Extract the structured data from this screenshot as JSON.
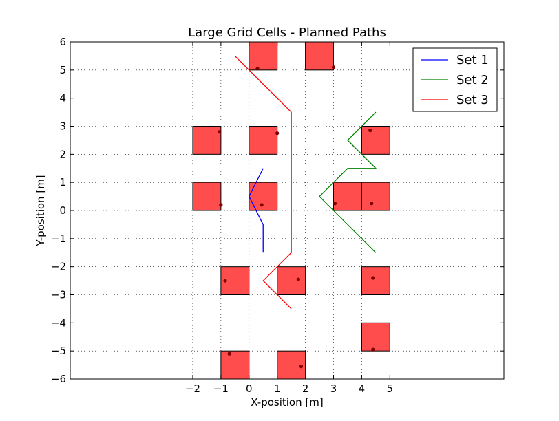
{
  "chart_data": {
    "type": "line",
    "title": "Large Grid Cells - Planned Paths",
    "xlabel": "X-position [m]",
    "ylabel": "Y-position [m]",
    "xlim": [
      -6.35,
      9.05
    ],
    "ylim": [
      -6,
      6
    ],
    "xticks": [
      -2,
      -1,
      0,
      1,
      2,
      3,
      4,
      5
    ],
    "yticks": [
      -6,
      -5,
      -4,
      -3,
      -2,
      -1,
      0,
      1,
      2,
      3,
      4,
      5,
      6
    ],
    "grid": true,
    "legend_position": "top-right",
    "series": [
      {
        "name": "Set 1",
        "color": "#0000ff",
        "x": [
          0.5,
          0.0,
          0.5,
          0.5
        ],
        "y": [
          1.5,
          0.5,
          -0.5,
          -1.5
        ]
      },
      {
        "name": "Set 2",
        "color": "#008000",
        "x": [
          4.5,
          3.5,
          4.5,
          3.5,
          2.5,
          3.5,
          4.5
        ],
        "y": [
          3.5,
          2.5,
          1.5,
          1.5,
          0.5,
          -0.5,
          -1.5
        ]
      },
      {
        "name": "Set 3",
        "color": "#ff0000",
        "x": [
          -0.5,
          1.5,
          1.5,
          1.5,
          0.5,
          1.5
        ],
        "y": [
          5.5,
          3.5,
          0.5,
          -1.5,
          -2.5,
          -3.5
        ]
      }
    ],
    "obstacles": {
      "fill": "#ff4d4d",
      "edge": "#000000",
      "size": 1,
      "cells": [
        [
          0,
          5
        ],
        [
          2,
          5
        ],
        [
          -2,
          2
        ],
        [
          0,
          2
        ],
        [
          4,
          2
        ],
        [
          -2,
          0
        ],
        [
          0,
          0
        ],
        [
          3,
          0
        ],
        [
          4,
          0
        ],
        [
          -1,
          -3
        ],
        [
          1,
          -3
        ],
        [
          4,
          -3
        ],
        [
          4,
          -5
        ],
        [
          -1,
          -6
        ],
        [
          1,
          -6
        ]
      ]
    },
    "points": {
      "color": "#800000",
      "x": [
        0.3,
        3.0,
        -1.05,
        1.0,
        4.3,
        -1.0,
        0.45,
        3.05,
        4.35,
        -0.85,
        1.75,
        4.4,
        4.4,
        -0.7,
        1.85
      ],
      "y": [
        5.05,
        5.1,
        2.8,
        2.75,
        2.85,
        0.2,
        0.2,
        0.25,
        0.25,
        -2.5,
        -2.45,
        -2.4,
        -4.95,
        -5.1,
        -5.55
      ]
    }
  }
}
